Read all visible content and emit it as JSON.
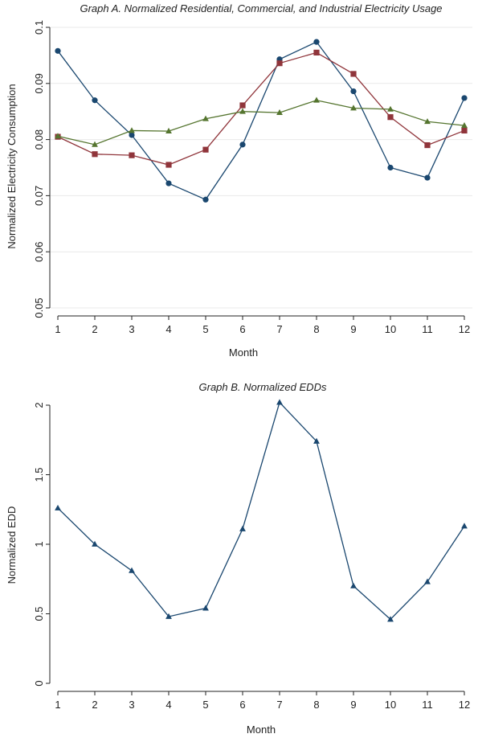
{
  "chart_data": [
    {
      "type": "line",
      "title": "Graph A. Normalized Residential, Commercial, and Industrial Electricity Usage",
      "xlabel": "Month",
      "ylabel": "Normalized Electricity Consumption",
      "x": [
        1,
        2,
        3,
        4,
        5,
        6,
        7,
        8,
        9,
        10,
        11,
        12
      ],
      "x_ticks": [
        "1",
        "2",
        "3",
        "4",
        "5",
        "6",
        "7",
        "8",
        "9",
        "10",
        "11",
        "12"
      ],
      "ylim": [
        0.05,
        0.1
      ],
      "y_ticks": [
        0.05,
        0.06,
        0.07,
        0.08,
        0.09,
        0.1
      ],
      "y_tick_labels": [
        "0.05",
        "0.06",
        "0.07",
        "0.08",
        "0.09",
        "0.1"
      ],
      "grid": true,
      "series": [
        {
          "marker": "circle",
          "color": "#1a476f",
          "values": [
            0.0958,
            0.087,
            0.0808,
            0.0722,
            0.0693,
            0.0791,
            0.0943,
            0.0974,
            0.0886,
            0.075,
            0.0732,
            0.0874
          ]
        },
        {
          "marker": "square",
          "color": "#90353b",
          "values": [
            0.0805,
            0.0774,
            0.0772,
            0.0755,
            0.0782,
            0.0861,
            0.0936,
            0.0955,
            0.0917,
            0.084,
            0.079,
            0.0816
          ]
        },
        {
          "marker": "triangle",
          "color": "#55752f",
          "values": [
            0.0806,
            0.0791,
            0.0816,
            0.0815,
            0.0837,
            0.085,
            0.0848,
            0.087,
            0.0856,
            0.0854,
            0.0832,
            0.0825
          ]
        }
      ]
    },
    {
      "type": "line",
      "title": "Graph B. Normalized EDDs",
      "xlabel": "Month",
      "ylabel": "Normalized EDD",
      "x": [
        1,
        2,
        3,
        4,
        5,
        6,
        7,
        8,
        9,
        10,
        11,
        12
      ],
      "x_ticks": [
        "1",
        "2",
        "3",
        "4",
        "5",
        "6",
        "7",
        "8",
        "9",
        "10",
        "11",
        "12"
      ],
      "ylim": [
        0,
        2
      ],
      "y_ticks": [
        0,
        0.5,
        1,
        1.5,
        2
      ],
      "y_tick_labels": [
        "0",
        "0.5",
        "1",
        "1.5",
        "2"
      ],
      "grid": false,
      "series": [
        {
          "marker": "triangle",
          "color": "#1a476f",
          "values": [
            1.26,
            1.0,
            0.81,
            0.48,
            0.54,
            1.11,
            2.02,
            1.74,
            0.7,
            0.46,
            0.73,
            1.13
          ]
        }
      ]
    }
  ]
}
